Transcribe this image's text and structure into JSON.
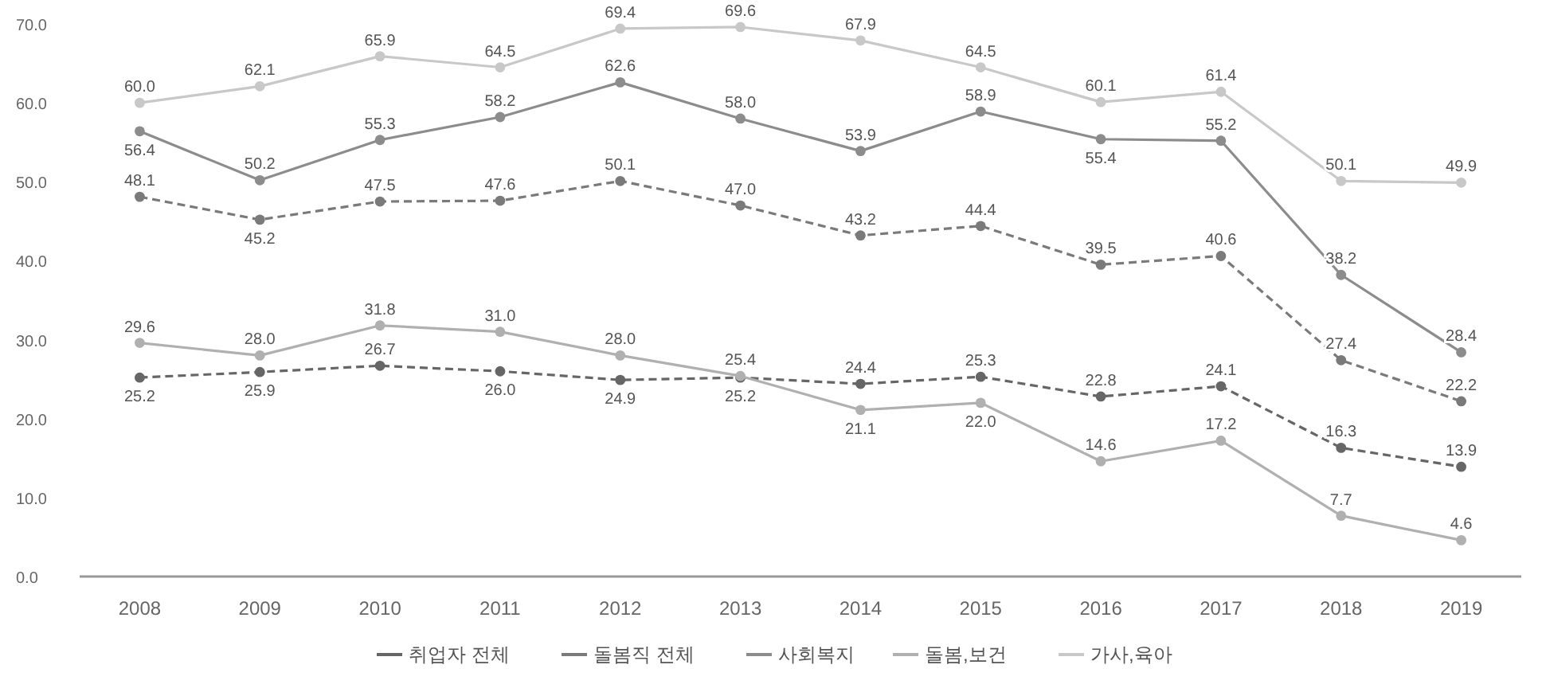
{
  "chart_data": {
    "type": "line",
    "categories": [
      "2008",
      "2009",
      "2010",
      "2011",
      "2012",
      "2013",
      "2014",
      "2015",
      "2016",
      "2017",
      "2018",
      "2019"
    ],
    "ylim": [
      0,
      70
    ],
    "yticks": [
      {
        "value": 0,
        "label": "0.0"
      },
      {
        "value": 10,
        "label": "10.0"
      },
      {
        "value": 20,
        "label": "20.0"
      },
      {
        "value": 30,
        "label": "30.0"
      },
      {
        "value": 40,
        "label": "40.0"
      },
      {
        "value": 50,
        "label": "50.0"
      },
      {
        "value": 60,
        "label": "60.0"
      },
      {
        "value": 70,
        "label": "70.0"
      }
    ],
    "marker": "circle",
    "legend": "bottom",
    "series": [
      {
        "name": "취업자 전체",
        "color": "#666666",
        "line_style": "dashed",
        "values": [
          25.2,
          25.9,
          26.7,
          26.0,
          24.9,
          25.2,
          24.4,
          25.3,
          22.8,
          24.1,
          16.3,
          13.9
        ],
        "value_labels": [
          "25.2",
          "25.9",
          "26.7",
          "26.0",
          "24.9",
          "25.2",
          "24.4",
          "25.3",
          "22.8",
          "24.1",
          "16.3",
          "13.9"
        ]
      },
      {
        "name": "돌봄직 전체",
        "color": "#7a7a7a",
        "line_style": "dashed",
        "values": [
          48.1,
          45.2,
          47.5,
          47.6,
          50.1,
          47.0,
          43.2,
          44.4,
          39.5,
          40.6,
          27.4,
          22.2
        ],
        "value_labels": [
          "48.1",
          "45.2",
          "47.5",
          "47.6",
          "50.1",
          "47.0",
          "43.2",
          "44.4",
          "39.5",
          "40.6",
          "27.4",
          "22.2"
        ]
      },
      {
        "name": "사회복지",
        "color": "#8c8c8c",
        "line_style": "solid",
        "values": [
          56.4,
          50.2,
          55.3,
          58.2,
          62.6,
          58.0,
          53.9,
          58.9,
          55.4,
          55.2,
          38.2,
          28.4
        ],
        "value_labels": [
          "56.4",
          "50.2",
          "55.3",
          "58.2",
          "62.6",
          "58.0",
          "53.9",
          "58.9",
          "55.4",
          "55.2",
          "38.2",
          "28.4"
        ]
      },
      {
        "name": "돌봄,보건",
        "color": "#b0b0b0",
        "line_style": "solid",
        "values": [
          29.6,
          28.0,
          31.8,
          31.0,
          28.0,
          25.4,
          21.1,
          22.0,
          14.6,
          17.2,
          7.7,
          4.6
        ],
        "value_labels": [
          "29.6",
          "28.0",
          "31.8",
          "31.0",
          "28.0",
          "25.4",
          "21.1",
          "22.0",
          "14.6",
          "17.2",
          "7.7",
          "4.6"
        ]
      },
      {
        "name": "가사,육아",
        "color": "#c8c8c8",
        "line_style": "solid",
        "values": [
          60.0,
          62.1,
          65.9,
          64.5,
          69.4,
          69.6,
          67.9,
          64.5,
          60.1,
          61.4,
          50.1,
          49.9
        ],
        "value_labels": [
          "60.0",
          "62.1",
          "65.9",
          "64.5",
          "69.4",
          "69.6",
          "67.9",
          "64.5",
          "60.1",
          "61.4",
          "50.1",
          "49.9"
        ]
      }
    ]
  }
}
